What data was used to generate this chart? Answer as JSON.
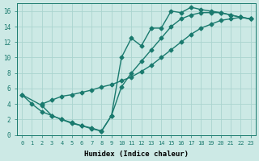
{
  "line1_x": [
    0,
    1,
    2,
    3,
    4,
    5,
    6,
    7,
    8,
    9,
    10,
    11,
    12,
    13,
    14,
    15,
    16,
    17,
    18,
    19,
    20,
    21,
    22,
    23
  ],
  "line1_y": [
    5.2,
    4.0,
    3.0,
    2.5,
    2.0,
    1.5,
    1.2,
    0.8,
    0.5,
    2.5,
    10.0,
    12.5,
    11.5,
    13.8,
    13.8,
    16.0,
    15.8,
    16.5,
    16.2,
    16.0,
    15.8,
    15.5,
    15.2,
    15.0
  ],
  "line2_x": [
    2,
    3,
    4,
    5,
    6,
    7,
    8,
    9,
    10,
    11,
    12,
    13,
    14,
    15,
    16,
    17,
    18,
    19,
    20,
    21,
    22,
    23
  ],
  "line2_y": [
    4.0,
    4.5,
    5.0,
    5.2,
    5.5,
    5.8,
    6.2,
    6.5,
    7.0,
    7.5,
    8.2,
    9.0,
    10.0,
    11.0,
    12.0,
    13.0,
    13.8,
    14.3,
    14.8,
    15.0,
    15.2,
    15.0
  ],
  "line3_x": [
    0,
    2,
    3,
    4,
    5,
    6,
    7,
    8,
    9,
    10,
    11,
    12,
    13,
    14,
    15,
    16,
    17,
    18,
    19,
    20,
    21,
    22,
    23
  ],
  "line3_y": [
    5.2,
    3.8,
    2.5,
    2.0,
    1.6,
    1.2,
    0.9,
    0.5,
    2.5,
    6.2,
    8.0,
    9.5,
    11.0,
    12.5,
    14.0,
    15.0,
    15.5,
    15.8,
    15.8,
    15.8,
    15.5,
    15.2,
    15.0
  ],
  "line_color": "#1a7a6e",
  "bg_color": "#cce9e5",
  "grid_color": "#aad4cf",
  "xlabel": "Humidex (Indice chaleur)",
  "xlim": [
    -0.5,
    23.5
  ],
  "ylim": [
    0,
    17
  ],
  "xticks": [
    0,
    1,
    2,
    3,
    4,
    5,
    6,
    7,
    8,
    9,
    10,
    11,
    12,
    13,
    14,
    15,
    16,
    17,
    18,
    19,
    20,
    21,
    22,
    23
  ],
  "yticks": [
    0,
    2,
    4,
    6,
    8,
    10,
    12,
    14,
    16
  ],
  "marker": "D",
  "markersize": 2.5,
  "linewidth": 1.0,
  "tick_fontsize": 5.0,
  "xlabel_fontsize": 6.5
}
